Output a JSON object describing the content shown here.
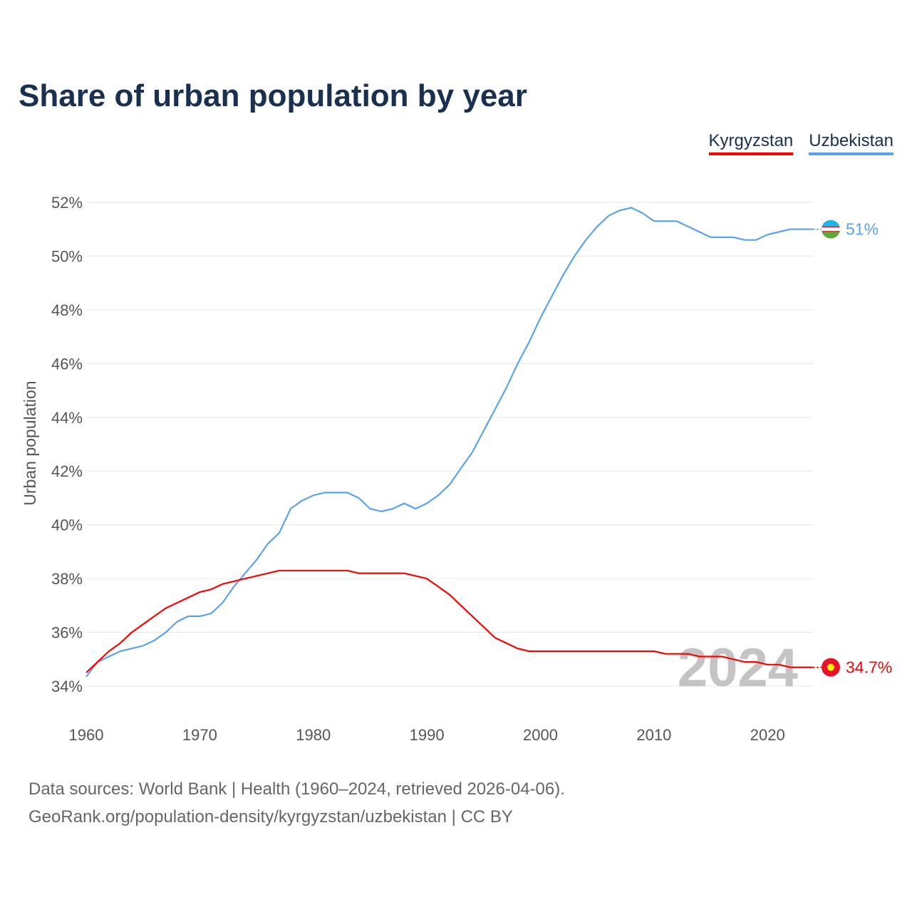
{
  "chart_data": {
    "type": "line",
    "title": "Share of urban population by year",
    "ylabel": "Urban population",
    "xlabel": "",
    "xlim": [
      1960,
      2024
    ],
    "ylim": [
      34,
      52
    ],
    "y_ticks": [
      "34%",
      "36%",
      "38%",
      "40%",
      "42%",
      "44%",
      "46%",
      "48%",
      "50%",
      "52%"
    ],
    "y_tick_values": [
      34,
      36,
      38,
      40,
      42,
      44,
      46,
      48,
      50,
      52
    ],
    "x_ticks": [
      "1960",
      "1970",
      "1980",
      "1990",
      "2000",
      "2010",
      "2020"
    ],
    "x_tick_values": [
      1960,
      1970,
      1980,
      1990,
      2000,
      2010,
      2020
    ],
    "grid": true,
    "legend_position": "top-right",
    "watermark_year": "2024",
    "x": [
      1960,
      1961,
      1962,
      1963,
      1964,
      1965,
      1966,
      1967,
      1968,
      1969,
      1970,
      1971,
      1972,
      1973,
      1974,
      1975,
      1976,
      1977,
      1978,
      1979,
      1980,
      1981,
      1982,
      1983,
      1984,
      1985,
      1986,
      1987,
      1988,
      1989,
      1990,
      1991,
      1992,
      1993,
      1994,
      1995,
      1996,
      1997,
      1998,
      1999,
      2000,
      2001,
      2002,
      2003,
      2004,
      2005,
      2006,
      2007,
      2008,
      2009,
      2010,
      2011,
      2012,
      2013,
      2014,
      2015,
      2016,
      2017,
      2018,
      2019,
      2020,
      2021,
      2022,
      2023,
      2024
    ],
    "series": [
      {
        "name": "Kyrgyzstan",
        "color": "#ff0000",
        "end_label": "34.7%",
        "values": [
          34.5,
          34.9,
          35.3,
          35.6,
          36.0,
          36.3,
          36.6,
          36.9,
          37.1,
          37.3,
          37.5,
          37.6,
          37.8,
          37.9,
          38.0,
          38.1,
          38.2,
          38.3,
          38.3,
          38.3,
          38.3,
          38.3,
          38.3,
          38.3,
          38.2,
          38.2,
          38.2,
          38.2,
          38.2,
          38.1,
          38.0,
          37.7,
          37.4,
          37.0,
          36.6,
          36.2,
          35.8,
          35.6,
          35.4,
          35.3,
          35.3,
          35.3,
          35.3,
          35.3,
          35.3,
          35.3,
          35.3,
          35.3,
          35.3,
          35.3,
          35.3,
          35.2,
          35.2,
          35.2,
          35.1,
          35.1,
          35.1,
          35.0,
          34.9,
          34.9,
          34.8,
          34.8,
          34.7,
          34.7,
          34.7
        ]
      },
      {
        "name": "Uzbekistan",
        "color": "#5ba3e8",
        "end_label": "51%",
        "values": [
          34.35,
          34.9,
          35.1,
          35.3,
          35.4,
          35.5,
          35.7,
          36.0,
          36.4,
          36.6,
          36.6,
          36.7,
          37.1,
          37.7,
          38.2,
          38.7,
          39.3,
          39.7,
          40.6,
          40.9,
          41.1,
          41.2,
          41.2,
          41.2,
          41.0,
          40.6,
          40.5,
          40.6,
          40.8,
          40.6,
          40.8,
          41.1,
          41.5,
          42.1,
          42.7,
          43.5,
          44.3,
          45.1,
          46.0,
          46.8,
          47.7,
          48.5,
          49.3,
          50.0,
          50.6,
          51.1,
          51.5,
          51.7,
          51.8,
          51.6,
          51.3,
          51.3,
          51.3,
          51.1,
          50.9,
          50.7,
          50.7,
          50.7,
          50.6,
          50.6,
          50.8,
          50.9,
          51.0,
          51.0,
          51.0
        ]
      }
    ]
  },
  "legend": [
    "Kyrgyzstan",
    "Uzbekistan"
  ],
  "footer": {
    "line1": "Data sources: World Bank | Health (1960–2024, retrieved 2026-04-06).",
    "line2": "GeoRank.org/population-density/kyrgyzstan/uzbekistan | CC BY"
  }
}
